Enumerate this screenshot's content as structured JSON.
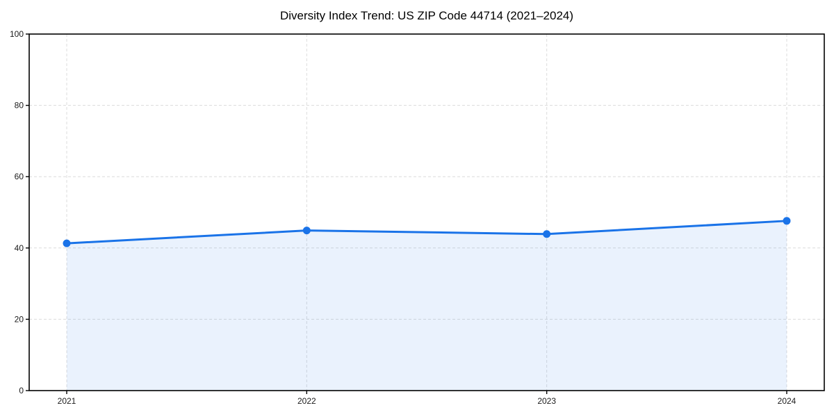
{
  "chart_data": {
    "type": "line",
    "title": "Diversity Index Trend: US ZIP Code 44714 (2021–2024)",
    "categories": [
      "2021",
      "2022",
      "2023",
      "2024"
    ],
    "series": [
      {
        "name": "Diversity Index",
        "values": [
          41.3,
          44.9,
          43.9,
          47.6
        ]
      }
    ],
    "xlabel": "",
    "ylabel": "",
    "ylim": [
      0,
      100
    ],
    "yticks": [
      0,
      20,
      40,
      60,
      80,
      100
    ],
    "grid": "dashed horizontal and vertical gridlines at ticks",
    "legend": "none",
    "area_fill": true,
    "markers": "filled circles at each data point",
    "colors": {
      "line": "#1a73e8",
      "marker": "#1a73e8",
      "area_fill": "#1a73e8",
      "area_fill_opacity": 0.09,
      "grid": "#dcdcdc",
      "axis": "#000000",
      "tick_text": "#1a1a1a",
      "background": "#ffffff"
    }
  }
}
